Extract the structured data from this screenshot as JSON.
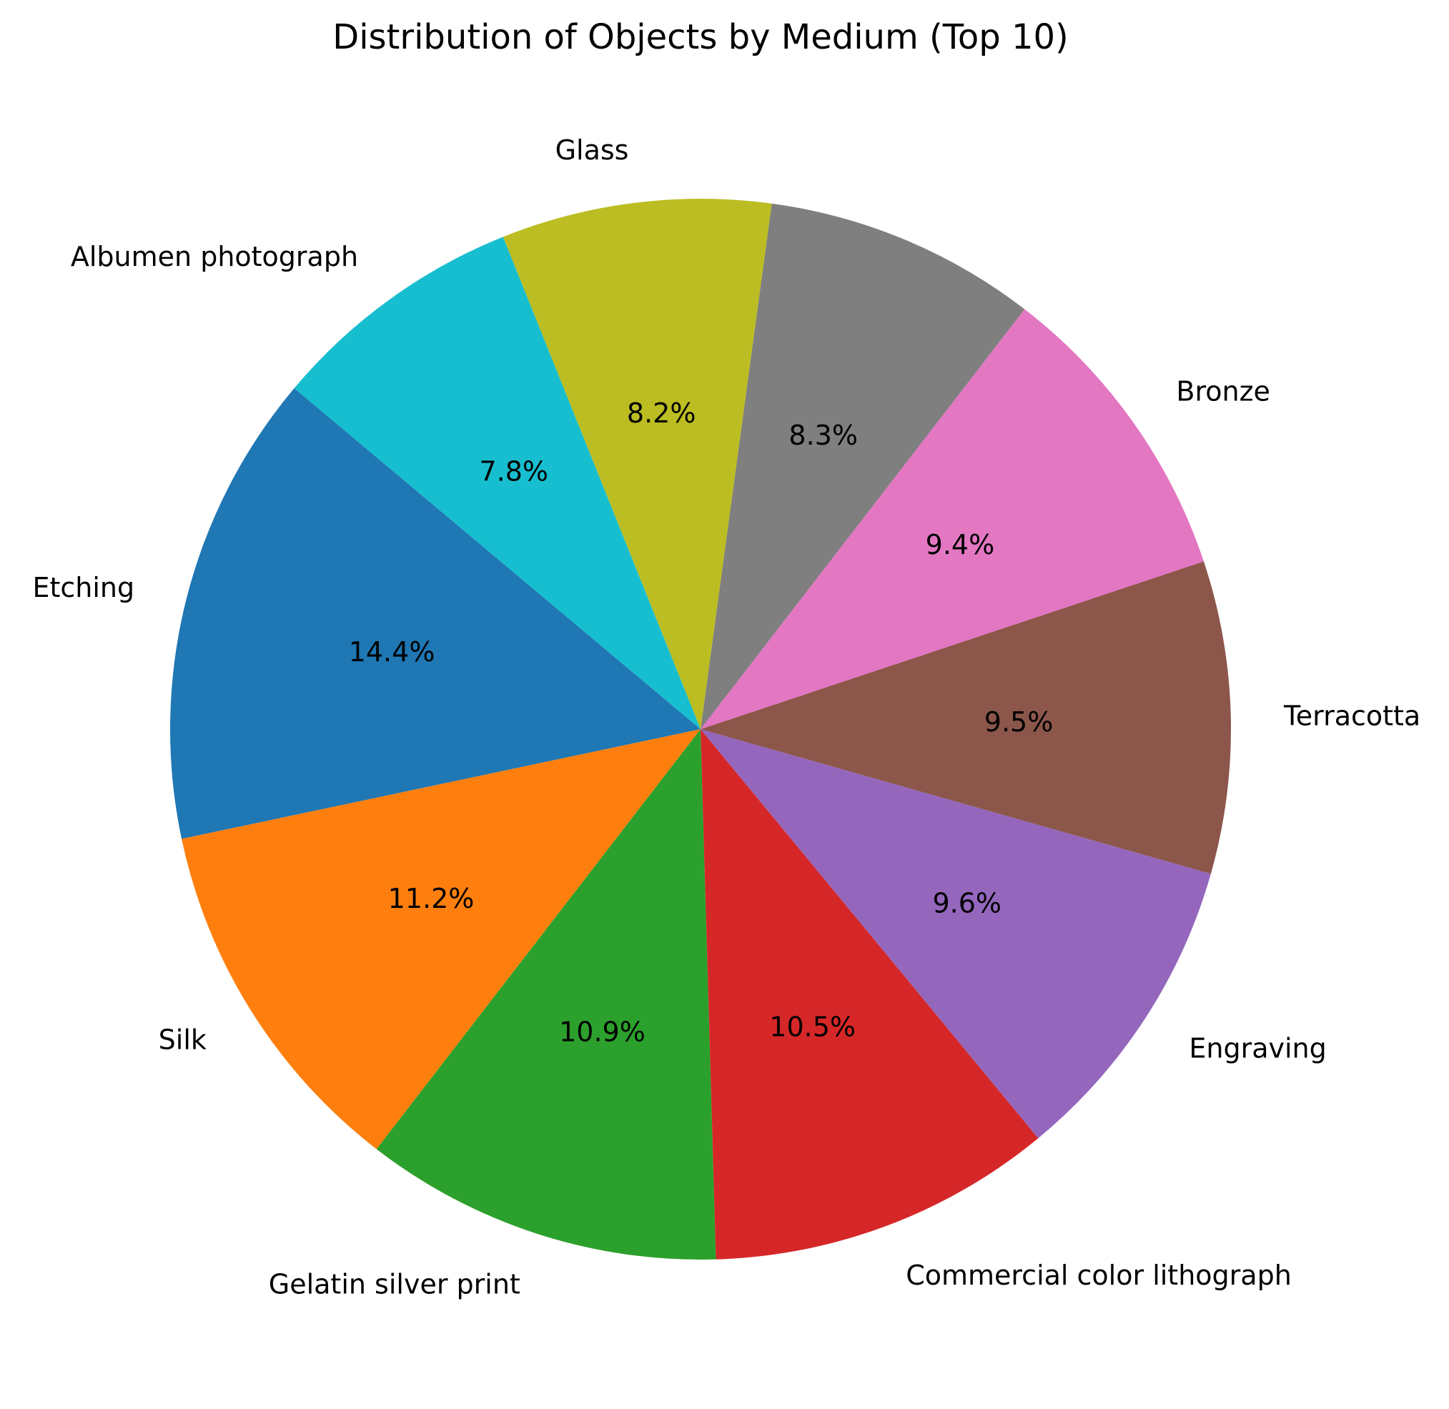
{
  "chart_data": {
    "type": "pie",
    "title": "Distribution of Objects by Medium (Top 10)",
    "categories": [
      "Etching",
      "Silk",
      "Gelatin silver print",
      "Commercial color lithograph",
      "Engraving",
      "Terracotta",
      "Bronze",
      "",
      "Glass",
      "Albumen photograph"
    ],
    "values": [
      14.4,
      11.2,
      10.9,
      10.5,
      9.6,
      9.5,
      9.4,
      8.3,
      8.2,
      7.8
    ],
    "value_labels": [
      "14.4%",
      "11.2%",
      "10.9%",
      "10.5%",
      "9.6%",
      "9.5%",
      "9.4%",
      "8.3%",
      "8.2%",
      "7.8%"
    ],
    "colors": [
      "#1f77b4",
      "#ff7f0e",
      "#2ca02c",
      "#d62728",
      "#9467bd",
      "#8c564b",
      "#e377c2",
      "#7f7f7f",
      "#bcbd22",
      "#17becf"
    ],
    "start_angle_deg": 140,
    "direction": "counterclockwise",
    "legend": "none"
  }
}
